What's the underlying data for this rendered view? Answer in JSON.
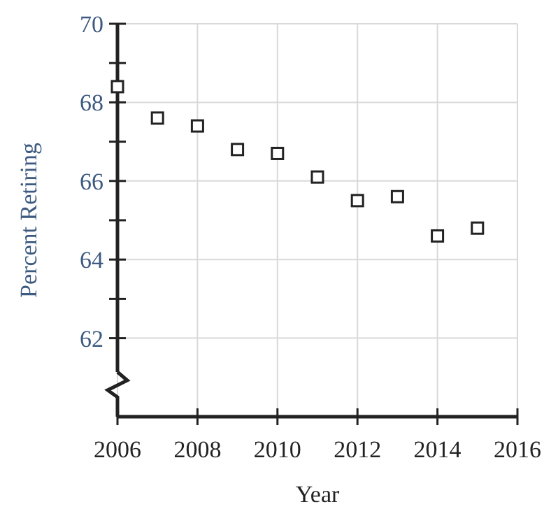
{
  "chart_data": {
    "type": "scatter",
    "xlabel": "Year",
    "ylabel": "Percent Retiring",
    "x": [
      2006,
      2007,
      2008,
      2009,
      2010,
      2011,
      2012,
      2013,
      2014,
      2015
    ],
    "values": [
      68.4,
      67.6,
      67.4,
      66.8,
      66.7,
      66.1,
      65.5,
      65.6,
      64.6,
      64.8
    ],
    "color": "#222222",
    "marker": "square",
    "grid": true,
    "xlim": [
      2006,
      2016
    ],
    "xticks": [
      2006,
      2008,
      2010,
      2012,
      2014,
      2016
    ],
    "ylim": [
      60,
      70
    ],
    "yticks": [
      62,
      {
        "value": 63,
        "label": null
      },
      64,
      {
        "value": 65,
        "label": null
      },
      66,
      {
        "value": 67,
        "label": null
      },
      68,
      {
        "value": 69,
        "label": null
      },
      70
    ]
  }
}
